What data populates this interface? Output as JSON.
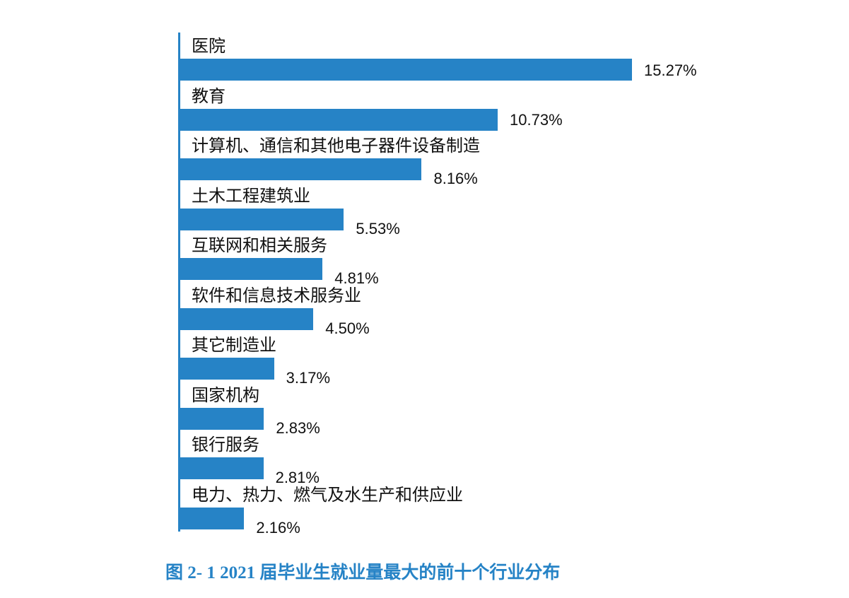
{
  "chart_data": {
    "type": "bar",
    "orientation": "horizontal",
    "title": "图 2- 1  2021 届毕业生就业量最大的前十个行业分布",
    "xlabel": "",
    "ylabel": "",
    "grid": false,
    "legend": null,
    "bar_color": "#2683C6",
    "unit": "%",
    "categories": [
      "医院",
      "教育",
      "计算机、通信和其他电子器件设备制造",
      "土木工程建筑业",
      "互联网和相关服务",
      "软件和信息技术服务业",
      "其它制造业",
      "国家机构",
      "银行服务",
      "电力、热力、燃气及水生产和供应业"
    ],
    "values": [
      15.27,
      10.73,
      8.16,
      5.53,
      4.81,
      4.5,
      3.17,
      2.83,
      2.81,
      2.16
    ],
    "labels": [
      "15.27%",
      "10.73%",
      "8.16%",
      "5.53%",
      "4.81%",
      "4.50%",
      "3.17%",
      "2.83%",
      "2.81%",
      "2.16%"
    ]
  },
  "caption": "图 2- 1  2021 届毕业生就业量最大的前十个行业分布"
}
